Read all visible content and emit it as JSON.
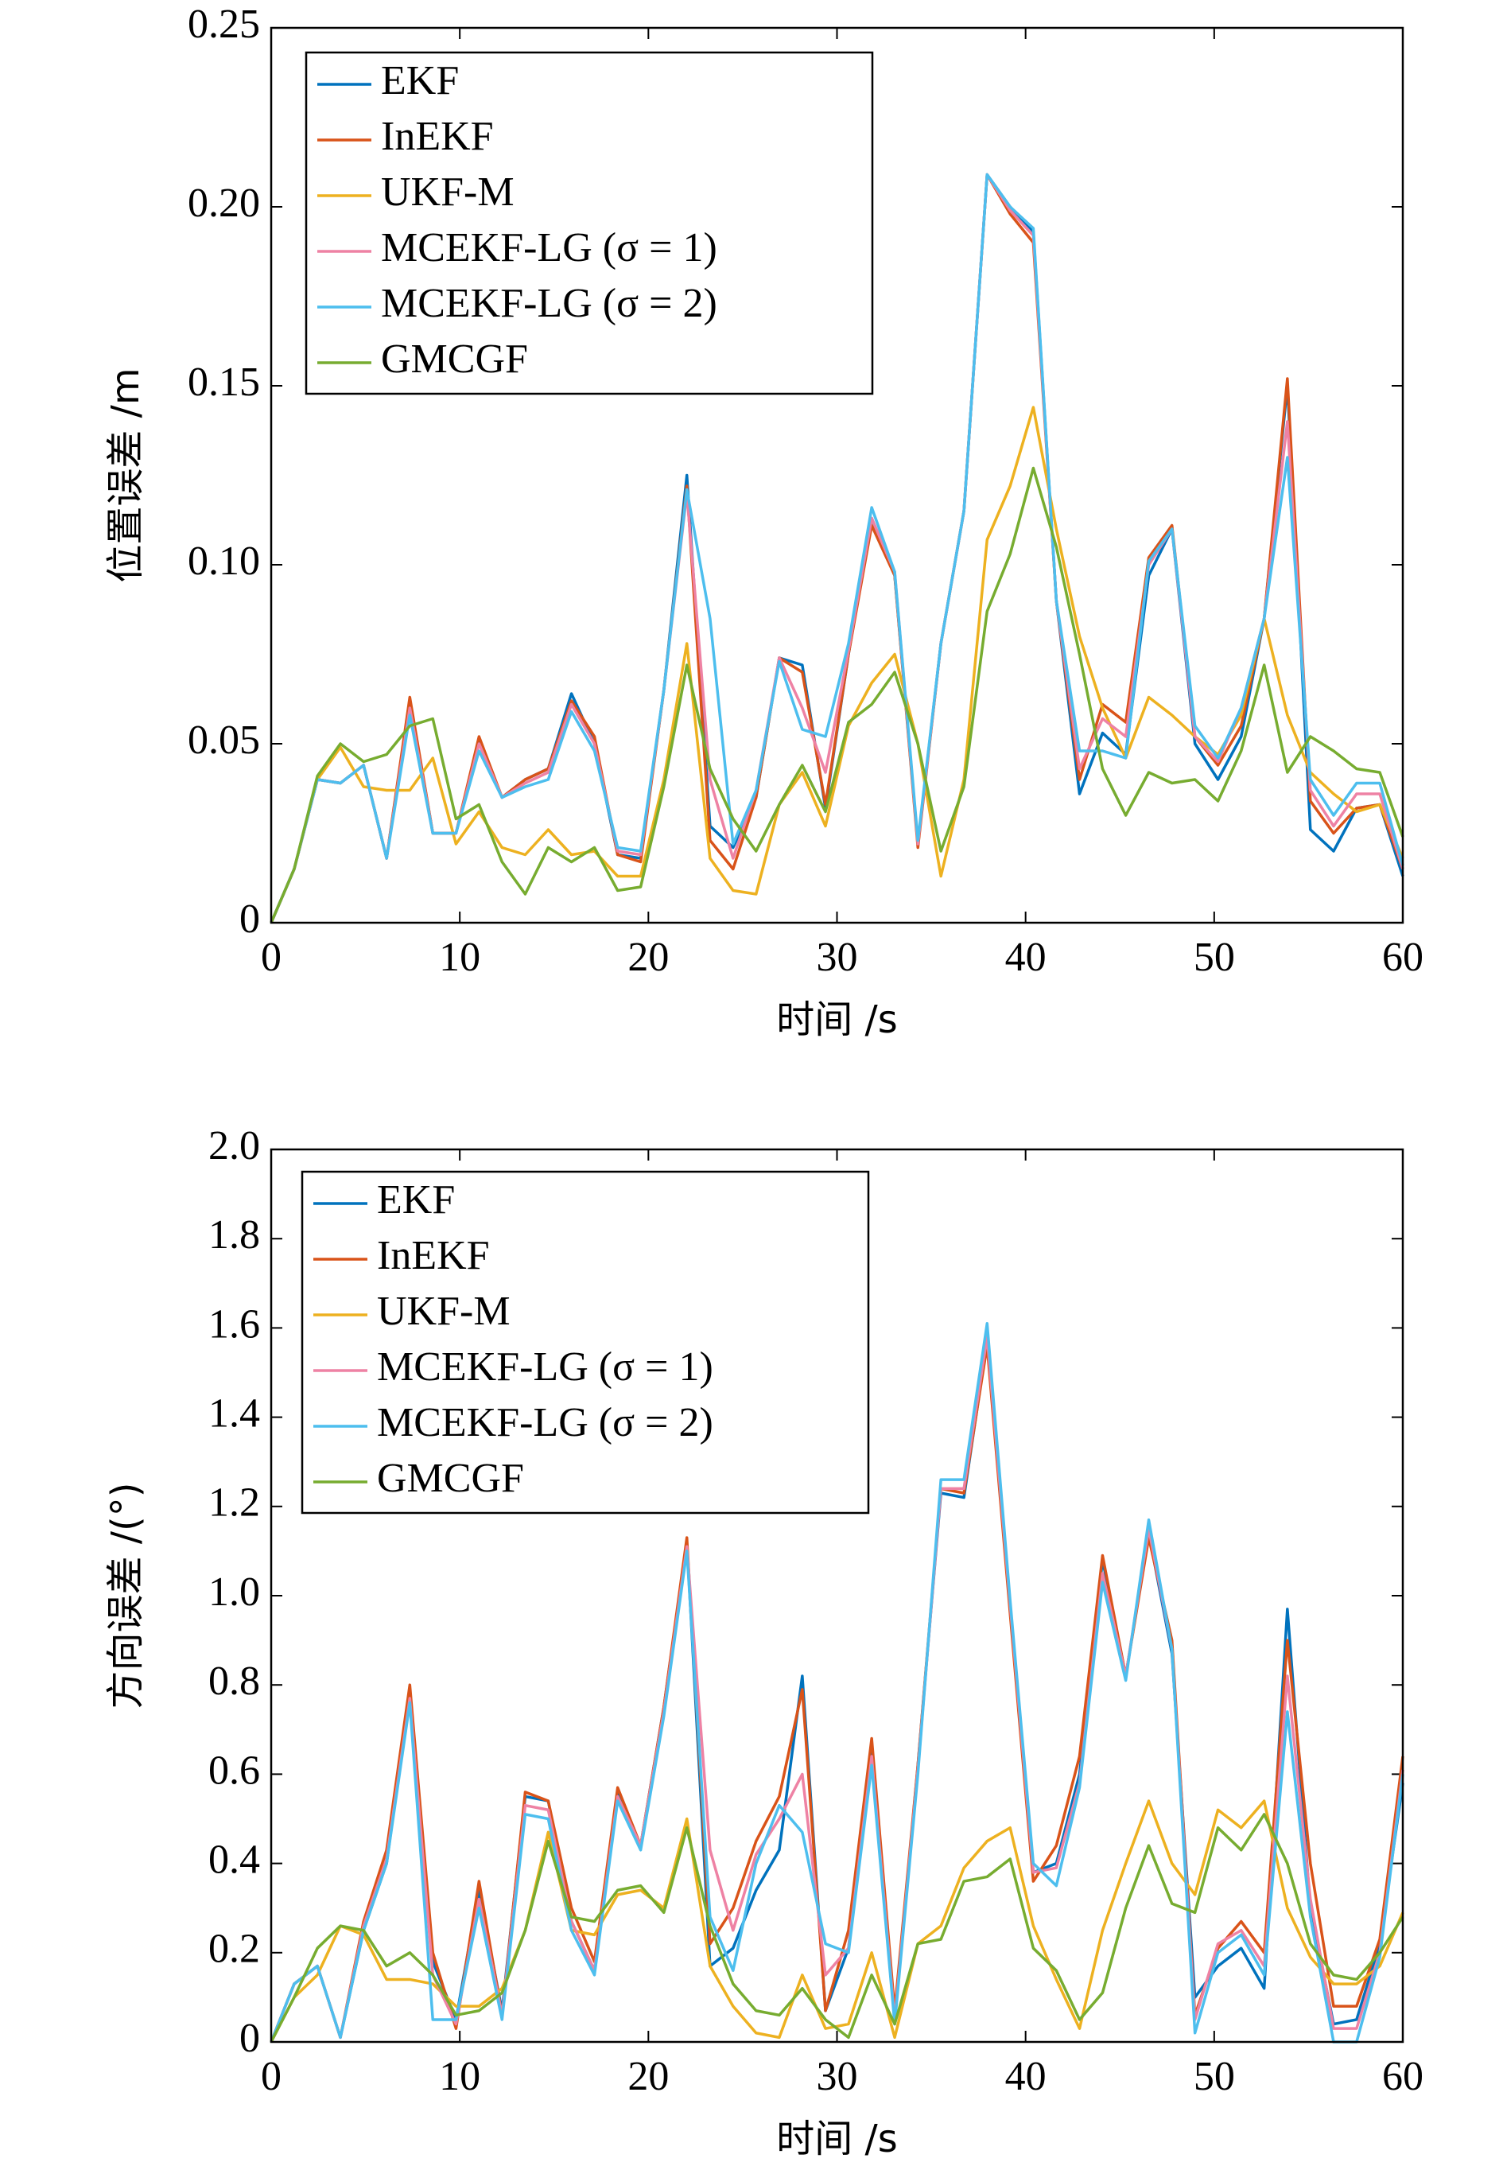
{
  "chart_data": [
    {
      "type": "line",
      "xlabel": "时间 /s",
      "ylabel": "位置误差 /m",
      "x": [
        0,
        1.22,
        2.45,
        3.67,
        4.9,
        6.12,
        7.35,
        8.57,
        9.8,
        11.02,
        12.24,
        13.47,
        14.69,
        15.92,
        17.14,
        18.37,
        19.59,
        20.82,
        22.04,
        23.27,
        24.49,
        25.71,
        26.94,
        28.16,
        29.39,
        30.61,
        31.84,
        33.06,
        34.29,
        35.51,
        36.73,
        37.96,
        39.18,
        40.41,
        41.63,
        42.86,
        44.08,
        45.31,
        46.53,
        47.76,
        48.98,
        50.2,
        51.43,
        52.65,
        53.88,
        55.1,
        56.33,
        57.55,
        58.78,
        60
      ],
      "xlim": [
        0,
        60
      ],
      "xticks": [
        0,
        10,
        20,
        30,
        40,
        50,
        60
      ],
      "ylim": [
        0,
        0.25
      ],
      "yticks": [
        0,
        0.05,
        {
          "value": 0.1,
          "label": "0.10"
        },
        0.15,
        {
          "value": 0.2,
          "label": "0.20"
        },
        0.25
      ],
      "legend": "upper left",
      "series": [
        {
          "name": "EKF",
          "color": "#0072bd",
          "values": [
            0,
            0.015,
            0.04,
            0.039,
            0.044,
            0.018,
            0.062,
            0.025,
            0.025,
            0.051,
            0.035,
            0.04,
            0.043,
            0.064,
            0.05,
            0.019,
            0.018,
            0.065,
            0.125,
            0.027,
            0.021,
            0.035,
            0.074,
            0.072,
            0.032,
            0.075,
            0.113,
            0.097,
            0.022,
            0.078,
            0.115,
            0.209,
            0.2,
            0.193,
            0.09,
            0.036,
            0.053,
            0.047,
            0.097,
            0.11,
            0.05,
            0.04,
            0.052,
            0.085,
            0.15,
            0.026,
            0.02,
            0.032,
            0.033,
            0.013
          ]
        },
        {
          "name": "InEKF",
          "color": "#d95319",
          "values": [
            0,
            0.015,
            0.04,
            0.039,
            0.044,
            0.018,
            0.063,
            0.025,
            0.025,
            0.052,
            0.035,
            0.04,
            0.043,
            0.062,
            0.052,
            0.019,
            0.017,
            0.065,
            0.122,
            0.023,
            0.015,
            0.035,
            0.074,
            0.07,
            0.033,
            0.075,
            0.111,
            0.097,
            0.021,
            0.078,
            0.115,
            0.209,
            0.198,
            0.19,
            0.09,
            0.04,
            0.061,
            0.056,
            0.102,
            0.111,
            0.052,
            0.044,
            0.055,
            0.085,
            0.152,
            0.034,
            0.025,
            0.032,
            0.033,
            0.015
          ]
        },
        {
          "name": "UKF-M",
          "color": "#edb120",
          "values": [
            0,
            0.015,
            0.04,
            0.049,
            0.038,
            0.037,
            0.037,
            0.046,
            0.022,
            0.031,
            0.021,
            0.019,
            0.026,
            0.019,
            0.02,
            0.013,
            0.013,
            0.04,
            0.078,
            0.018,
            0.009,
            0.008,
            0.033,
            0.042,
            0.027,
            0.055,
            0.067,
            0.075,
            0.05,
            0.013,
            0.04,
            0.107,
            0.122,
            0.144,
            0.11,
            0.08,
            0.06,
            0.046,
            0.063,
            0.058,
            0.052,
            0.047,
            0.058,
            0.085,
            0.058,
            0.042,
            0.036,
            0.031,
            0.033,
            0.018
          ]
        },
        {
          "name": "MCEKF-LG (σ = 1)",
          "color": "#ee82a4",
          "values": [
            0,
            0.015,
            0.04,
            0.039,
            0.044,
            0.018,
            0.06,
            0.025,
            0.025,
            0.05,
            0.035,
            0.039,
            0.042,
            0.061,
            0.05,
            0.02,
            0.019,
            0.065,
            0.12,
            0.04,
            0.018,
            0.037,
            0.074,
            0.06,
            0.042,
            0.076,
            0.113,
            0.098,
            0.022,
            0.078,
            0.115,
            0.209,
            0.199,
            0.192,
            0.09,
            0.043,
            0.057,
            0.052,
            0.1,
            0.11,
            0.052,
            0.045,
            0.06,
            0.085,
            0.14,
            0.037,
            0.027,
            0.036,
            0.036,
            0.015
          ]
        },
        {
          "name": "MCEKF-LG (σ = 2)",
          "color": "#4dbeee",
          "values": [
            0,
            0.015,
            0.04,
            0.039,
            0.044,
            0.018,
            0.058,
            0.025,
            0.025,
            0.048,
            0.035,
            0.038,
            0.04,
            0.059,
            0.048,
            0.021,
            0.02,
            0.065,
            0.121,
            0.085,
            0.022,
            0.037,
            0.073,
            0.054,
            0.052,
            0.078,
            0.116,
            0.098,
            0.023,
            0.078,
            0.115,
            0.209,
            0.2,
            0.194,
            0.09,
            0.048,
            0.048,
            0.046,
            0.101,
            0.11,
            0.055,
            0.046,
            0.06,
            0.085,
            0.13,
            0.04,
            0.03,
            0.039,
            0.039,
            0.016
          ]
        },
        {
          "name": "GMCGF",
          "color": "#77ac30",
          "values": [
            0,
            0.015,
            0.041,
            0.05,
            0.045,
            0.047,
            0.055,
            0.057,
            0.029,
            0.033,
            0.017,
            0.008,
            0.021,
            0.017,
            0.021,
            0.009,
            0.01,
            0.038,
            0.072,
            0.043,
            0.029,
            0.02,
            0.033,
            0.044,
            0.031,
            0.056,
            0.061,
            0.07,
            0.05,
            0.02,
            0.038,
            0.087,
            0.103,
            0.127,
            0.105,
            0.075,
            0.043,
            0.03,
            0.042,
            0.039,
            0.04,
            0.034,
            0.048,
            0.072,
            0.042,
            0.052,
            0.048,
            0.043,
            0.042,
            0.024
          ]
        }
      ]
    },
    {
      "type": "line",
      "xlabel": "时间 /s",
      "ylabel": "方向误差 /(°)",
      "x": [
        0,
        1.22,
        2.45,
        3.67,
        4.9,
        6.12,
        7.35,
        8.57,
        9.8,
        11.02,
        12.24,
        13.47,
        14.69,
        15.92,
        17.14,
        18.37,
        19.59,
        20.82,
        22.04,
        23.27,
        24.49,
        25.71,
        26.94,
        28.16,
        29.39,
        30.61,
        31.84,
        33.06,
        34.29,
        35.51,
        36.73,
        37.96,
        39.18,
        40.41,
        41.63,
        42.86,
        44.08,
        45.31,
        46.53,
        47.76,
        48.98,
        50.2,
        51.43,
        52.65,
        53.88,
        55.1,
        56.33,
        57.55,
        58.78,
        60
      ],
      "xlim": [
        0,
        60
      ],
      "xticks": [
        0,
        10,
        20,
        30,
        40,
        50,
        60
      ],
      "ylim": [
        0,
        2
      ],
      "yticks": [
        0,
        0.2,
        0.4,
        0.6,
        0.8,
        {
          "value": 1,
          "label": "1.0"
        },
        1.2,
        1.4,
        1.6,
        1.8,
        {
          "value": 2,
          "label": "2.0"
        }
      ],
      "legend": "upper left",
      "series": [
        {
          "name": "EKF",
          "color": "#0072bd",
          "values": [
            0,
            0.13,
            0.17,
            0.01,
            0.25,
            0.4,
            0.78,
            0.18,
            0.05,
            0.34,
            0.07,
            0.55,
            0.54,
            0.27,
            0.16,
            0.56,
            0.44,
            0.75,
            1.12,
            0.17,
            0.21,
            0.34,
            0.43,
            0.82,
            0.07,
            0.21,
            0.66,
            0.05,
            0.62,
            1.23,
            1.22,
            1.57,
            0.97,
            0.38,
            0.4,
            0.6,
            1.08,
            0.82,
            1.14,
            0.87,
            0.1,
            0.17,
            0.21,
            0.12,
            0.97,
            0.3,
            0.04,
            0.05,
            0.22,
            0.58
          ]
        },
        {
          "name": "InEKF",
          "color": "#d95319",
          "values": [
            0,
            0.13,
            0.17,
            0.01,
            0.27,
            0.43,
            0.8,
            0.2,
            0.03,
            0.36,
            0.06,
            0.56,
            0.54,
            0.3,
            0.18,
            0.57,
            0.44,
            0.75,
            1.13,
            0.22,
            0.3,
            0.45,
            0.55,
            0.79,
            0.07,
            0.25,
            0.68,
            0.07,
            0.62,
            1.24,
            1.23,
            1.56,
            0.96,
            0.36,
            0.44,
            0.64,
            1.09,
            0.82,
            1.13,
            0.9,
            0.06,
            0.21,
            0.27,
            0.2,
            0.9,
            0.4,
            0.08,
            0.08,
            0.23,
            0.64
          ]
        },
        {
          "name": "UKF-M",
          "color": "#edb120",
          "values": [
            0,
            0.1,
            0.15,
            0.26,
            0.24,
            0.14,
            0.14,
            0.13,
            0.08,
            0.08,
            0.12,
            0.25,
            0.47,
            0.25,
            0.24,
            0.33,
            0.34,
            0.3,
            0.5,
            0.17,
            0.08,
            0.02,
            0.01,
            0.15,
            0.03,
            0.04,
            0.2,
            0.01,
            0.22,
            0.26,
            0.39,
            0.45,
            0.48,
            0.26,
            0.14,
            0.03,
            0.25,
            0.4,
            0.54,
            0.4,
            0.33,
            0.52,
            0.48,
            0.54,
            0.3,
            0.19,
            0.13,
            0.13,
            0.17,
            0.29
          ]
        },
        {
          "name": "MCEKF-LG (σ = 1)",
          "color": "#ee82a4",
          "values": [
            0,
            0.13,
            0.17,
            0.01,
            0.26,
            0.41,
            0.77,
            0.15,
            0.04,
            0.32,
            0.06,
            0.53,
            0.52,
            0.27,
            0.16,
            0.55,
            0.44,
            0.74,
            1.11,
            0.43,
            0.25,
            0.42,
            0.5,
            0.6,
            0.15,
            0.21,
            0.64,
            0.05,
            0.61,
            1.24,
            1.24,
            1.58,
            0.98,
            0.38,
            0.39,
            0.58,
            1.05,
            0.82,
            1.15,
            0.88,
            0.05,
            0.22,
            0.25,
            0.17,
            0.82,
            0.32,
            0.03,
            0.03,
            0.2,
            0.61
          ]
        },
        {
          "name": "MCEKF-LG (σ = 2)",
          "color": "#4dbeee",
          "values": [
            0,
            0.13,
            0.17,
            0.01,
            0.25,
            0.4,
            0.76,
            0.05,
            0.05,
            0.3,
            0.05,
            0.51,
            0.5,
            0.25,
            0.15,
            0.54,
            0.43,
            0.73,
            1.1,
            0.28,
            0.16,
            0.4,
            0.53,
            0.47,
            0.22,
            0.2,
            0.62,
            0.04,
            0.6,
            1.26,
            1.26,
            1.61,
            0.99,
            0.4,
            0.35,
            0.57,
            1.03,
            0.81,
            1.17,
            0.88,
            0.02,
            0.2,
            0.24,
            0.15,
            0.74,
            0.28,
            0.0,
            0.0,
            0.19,
            0.6
          ]
        },
        {
          "name": "GMCGF",
          "color": "#77ac30",
          "values": [
            0,
            0.1,
            0.21,
            0.26,
            0.25,
            0.17,
            0.2,
            0.15,
            0.06,
            0.07,
            0.11,
            0.25,
            0.45,
            0.28,
            0.27,
            0.34,
            0.35,
            0.29,
            0.48,
            0.26,
            0.13,
            0.07,
            0.06,
            0.12,
            0.05,
            0.01,
            0.15,
            0.04,
            0.22,
            0.23,
            0.36,
            0.37,
            0.41,
            0.21,
            0.16,
            0.05,
            0.11,
            0.3,
            0.44,
            0.31,
            0.29,
            0.48,
            0.43,
            0.51,
            0.4,
            0.22,
            0.15,
            0.14,
            0.2,
            0.28
          ]
        }
      ]
    }
  ]
}
